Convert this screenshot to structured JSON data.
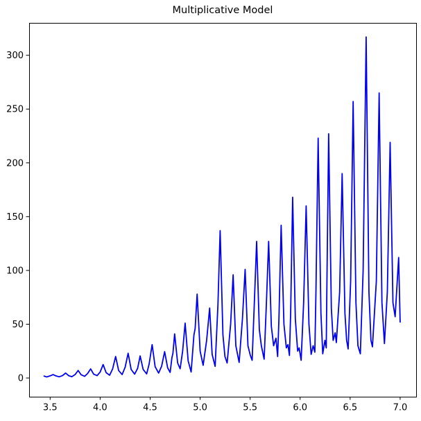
{
  "chart_data": {
    "type": "line",
    "title": "Multiplicative Model",
    "xlabel": "",
    "ylabel": "",
    "grid": false,
    "legend": null,
    "line_color": "#0000f0",
    "line_width": 1.8,
    "xlim": [
      3.29,
      7.16
    ],
    "ylim": [
      -17.4,
      330.1
    ],
    "xticks": [
      3.5,
      4.0,
      4.5,
      5.0,
      5.5,
      6.0,
      6.5,
      7.0
    ],
    "xtick_labels": [
      "3.5",
      "4.0",
      "4.5",
      "5.0",
      "5.5",
      "6.0",
      "6.5",
      "7.0"
    ],
    "yticks": [
      0,
      50,
      100,
      150,
      200,
      250,
      300
    ],
    "ytick_labels": [
      "0",
      "50",
      "100",
      "150",
      "200",
      "250",
      "300"
    ],
    "series": [
      {
        "name": "multiplicative-model-series",
        "points": [
          [
            3.44,
            1.8
          ],
          [
            3.465,
            1.0
          ],
          [
            3.5,
            2.0
          ],
          [
            3.53,
            3.2
          ],
          [
            3.557,
            2.0
          ],
          [
            3.59,
            1.1
          ],
          [
            3.625,
            2.3
          ],
          [
            3.655,
            4.6
          ],
          [
            3.685,
            2.2
          ],
          [
            3.717,
            1.2
          ],
          [
            3.75,
            3.2
          ],
          [
            3.78,
            7.0
          ],
          [
            3.81,
            3.0
          ],
          [
            3.845,
            1.6
          ],
          [
            3.875,
            4.2
          ],
          [
            3.905,
            8.5
          ],
          [
            3.935,
            3.6
          ],
          [
            3.97,
            2.2
          ],
          [
            4.0,
            5.5
          ],
          [
            4.03,
            12.5
          ],
          [
            4.06,
            5.0
          ],
          [
            4.095,
            2.6
          ],
          [
            4.125,
            8.5
          ],
          [
            4.155,
            20.0
          ],
          [
            4.185,
            7.0
          ],
          [
            4.22,
            3.2
          ],
          [
            4.25,
            10.0
          ],
          [
            4.28,
            23.0
          ],
          [
            4.31,
            8.0
          ],
          [
            4.345,
            3.6
          ],
          [
            4.375,
            9.0
          ],
          [
            4.4,
            20.5
          ],
          [
            4.43,
            8.0
          ],
          [
            4.465,
            3.8
          ],
          [
            4.49,
            13.0
          ],
          [
            4.52,
            31.0
          ],
          [
            4.55,
            10.5
          ],
          [
            4.585,
            4.6
          ],
          [
            4.615,
            11.0
          ],
          [
            4.645,
            24.5
          ],
          [
            4.675,
            9.5
          ],
          [
            4.7,
            5.2
          ],
          [
            4.718,
            19.0
          ],
          [
            4.728,
            23.0
          ],
          [
            4.745,
            41.0
          ],
          [
            4.775,
            14.0
          ],
          [
            4.8,
            8.6
          ],
          [
            4.825,
            25.0
          ],
          [
            4.85,
            51.0
          ],
          [
            4.88,
            16.0
          ],
          [
            4.91,
            5.6
          ],
          [
            4.938,
            40.0
          ],
          [
            4.95,
            46.0
          ],
          [
            4.97,
            78.0
          ],
          [
            5.0,
            25.0
          ],
          [
            5.03,
            11.8
          ],
          [
            5.065,
            35.0
          ],
          [
            5.095,
            65.0
          ],
          [
            5.12,
            22.0
          ],
          [
            5.15,
            10.8
          ],
          [
            5.178,
            68.0
          ],
          [
            5.2,
            137.0
          ],
          [
            5.228,
            40.0
          ],
          [
            5.248,
            20.0
          ],
          [
            5.27,
            14.0
          ],
          [
            5.305,
            50.0
          ],
          [
            5.33,
            96.0
          ],
          [
            5.357,
            30.0
          ],
          [
            5.39,
            14.5
          ],
          [
            5.423,
            55.0
          ],
          [
            5.45,
            101.0
          ],
          [
            5.478,
            30.0
          ],
          [
            5.502,
            21.0
          ],
          [
            5.52,
            16.5
          ],
          [
            5.54,
            65.0
          ],
          [
            5.565,
            127.0
          ],
          [
            5.592,
            45.0
          ],
          [
            5.612,
            30.0
          ],
          [
            5.64,
            17.5
          ],
          [
            5.662,
            68.0
          ],
          [
            5.685,
            127.0
          ],
          [
            5.712,
            48.0
          ],
          [
            5.735,
            30.0
          ],
          [
            5.758,
            37.0
          ],
          [
            5.775,
            20.0
          ],
          [
            5.788,
            55.0
          ],
          [
            5.81,
            142.0
          ],
          [
            5.838,
            50.0
          ],
          [
            5.862,
            28.0
          ],
          [
            5.878,
            31.0
          ],
          [
            5.893,
            21.0
          ],
          [
            5.905,
            60.0
          ],
          [
            5.925,
            168.0
          ],
          [
            5.952,
            55.0
          ],
          [
            5.975,
            25.0
          ],
          [
            5.99,
            28.0
          ],
          [
            6.01,
            16.5
          ],
          [
            6.035,
            70.0
          ],
          [
            6.06,
            160.0
          ],
          [
            6.088,
            50.0
          ],
          [
            6.11,
            22.0
          ],
          [
            6.13,
            30.0
          ],
          [
            6.147,
            24.0
          ],
          [
            6.158,
            80.0
          ],
          [
            6.18,
            223.0
          ],
          [
            6.208,
            60.0
          ],
          [
            6.226,
            22.5
          ],
          [
            6.248,
            35.0
          ],
          [
            6.261,
            28.0
          ],
          [
            6.268,
            90.0
          ],
          [
            6.285,
            227.0
          ],
          [
            6.312,
            65.0
          ],
          [
            6.33,
            35.0
          ],
          [
            6.35,
            42.0
          ],
          [
            6.362,
            33.0
          ],
          [
            6.395,
            80.0
          ],
          [
            6.42,
            190.0
          ],
          [
            6.448,
            60.0
          ],
          [
            6.465,
            35.0
          ],
          [
            6.48,
            27.0
          ],
          [
            6.505,
            90.0
          ],
          [
            6.53,
            257.0
          ],
          [
            6.558,
            70.0
          ],
          [
            6.578,
            30.0
          ],
          [
            6.602,
            22.5
          ],
          [
            6.63,
            100.0
          ],
          [
            6.66,
            317.0
          ],
          [
            6.688,
            80.0
          ],
          [
            6.708,
            35.0
          ],
          [
            6.723,
            29.0
          ],
          [
            6.762,
            90.0
          ],
          [
            6.79,
            265.0
          ],
          [
            6.818,
            70.0
          ],
          [
            6.843,
            32.0
          ],
          [
            6.872,
            80.0
          ],
          [
            6.9,
            219.0
          ],
          [
            6.928,
            70.0
          ],
          [
            6.95,
            57.0
          ],
          [
            6.985,
            112.0
          ],
          [
            7.0,
            52.0
          ]
        ]
      }
    ]
  }
}
